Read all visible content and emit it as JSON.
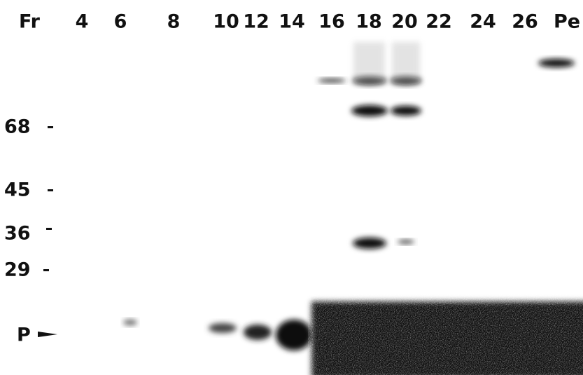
{
  "lanes": [
    "Fr",
    "4",
    "6",
    "8",
    "10",
    "12",
    "14",
    "16",
    "18",
    "20",
    "22",
    "24",
    "26",
    "Pe"
  ],
  "markers": [
    "68",
    "45",
    "36",
    "29",
    "P"
  ]
}
